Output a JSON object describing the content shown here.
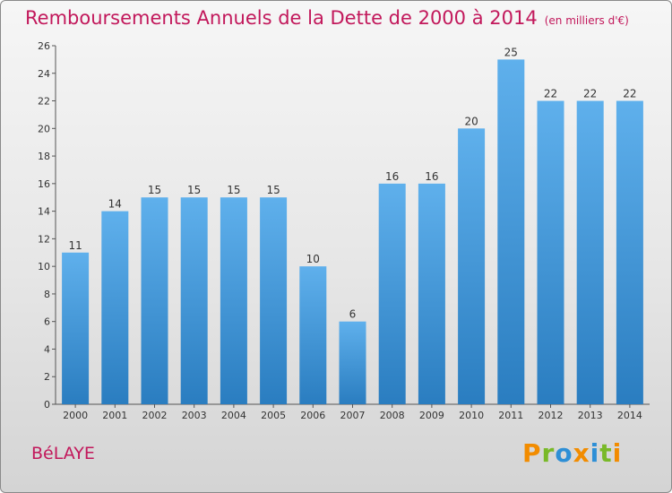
{
  "header": {
    "title": "Remboursements Annuels de la Dette de 2000 à 2014",
    "unit": "(en milliers d'€)"
  },
  "footer": {
    "location": "BéLAYE",
    "logo_text": "Proxiti"
  },
  "colors": {
    "title": "#c2185b",
    "bar_light": "#5fb0ec",
    "bar_dark": "#2a7dc0"
  },
  "chart_data": {
    "type": "bar",
    "title": "Remboursements Annuels de la Dette de 2000 à 2014",
    "subtitle": "(en milliers d'€)",
    "xlabel": "",
    "ylabel": "",
    "categories": [
      "2000",
      "2001",
      "2002",
      "2003",
      "2004",
      "2005",
      "2006",
      "2007",
      "2008",
      "2009",
      "2010",
      "2011",
      "2012",
      "2013",
      "2014"
    ],
    "values": [
      11,
      14,
      15,
      15,
      15,
      15,
      10,
      6,
      16,
      16,
      20,
      25,
      22,
      22,
      22
    ],
    "ylim": [
      0,
      26
    ],
    "yticks": [
      0,
      2,
      4,
      6,
      8,
      10,
      12,
      14,
      16,
      18,
      20,
      22,
      24,
      26
    ],
    "grid": false,
    "data_labels": true
  }
}
